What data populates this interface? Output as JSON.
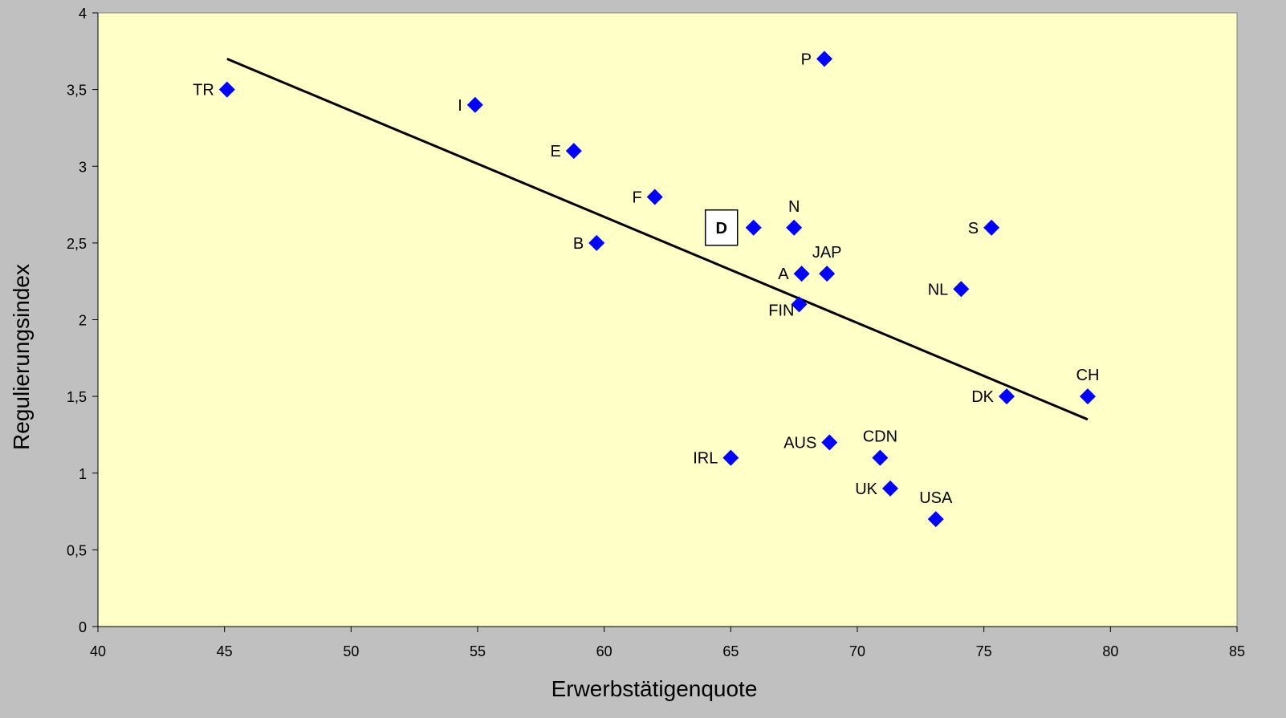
{
  "chart_data": {
    "type": "scatter",
    "title": "",
    "xlabel": "Erwerbstätigenquote",
    "ylabel": "Regulierungsindex",
    "xlim": [
      40,
      85
    ],
    "ylim": [
      0,
      4
    ],
    "xticks": [
      40,
      45,
      50,
      55,
      60,
      65,
      70,
      75,
      80,
      85
    ],
    "yticks": [
      0,
      0.5,
      1,
      1.5,
      2,
      2.5,
      3,
      3.5,
      4
    ],
    "xtick_labels": [
      "40",
      "45",
      "50",
      "55",
      "60",
      "65",
      "70",
      "75",
      "80",
      "85"
    ],
    "ytick_labels": [
      "0",
      "0,5",
      "1",
      "1,5",
      "2",
      "2,5",
      "3",
      "3,5",
      "4"
    ],
    "grid": false,
    "legend": "none",
    "colors": {
      "plot_bg": "#ffffc8",
      "page_bg": "#c0c0c0",
      "marker": "#0000ff",
      "trend": "#000000"
    },
    "points": [
      {
        "label": "TR",
        "x": 45.1,
        "y": 3.5,
        "label_pos": "left"
      },
      {
        "label": "I",
        "x": 54.9,
        "y": 3.4,
        "label_pos": "left"
      },
      {
        "label": "E",
        "x": 58.8,
        "y": 3.1,
        "label_pos": "left"
      },
      {
        "label": "B",
        "x": 59.7,
        "y": 2.5,
        "label_pos": "left"
      },
      {
        "label": "F",
        "x": 62.0,
        "y": 2.8,
        "label_pos": "left"
      },
      {
        "label": "D",
        "x": 65.9,
        "y": 2.6,
        "label_pos": "boxed-left"
      },
      {
        "label": "N",
        "x": 67.5,
        "y": 2.6,
        "label_pos": "above"
      },
      {
        "label": "A",
        "x": 67.8,
        "y": 2.3,
        "label_pos": "left"
      },
      {
        "label": "JAP",
        "x": 68.8,
        "y": 2.3,
        "label_pos": "above"
      },
      {
        "label": "FIN",
        "x": 67.7,
        "y": 2.1,
        "label_pos": "below-left"
      },
      {
        "label": "P",
        "x": 68.7,
        "y": 3.7,
        "label_pos": "left"
      },
      {
        "label": "AUS",
        "x": 68.9,
        "y": 1.2,
        "label_pos": "left"
      },
      {
        "label": "IRL",
        "x": 65.0,
        "y": 1.1,
        "label_pos": "left"
      },
      {
        "label": "CDN",
        "x": 70.9,
        "y": 1.1,
        "label_pos": "above"
      },
      {
        "label": "UK",
        "x": 71.3,
        "y": 0.9,
        "label_pos": "left"
      },
      {
        "label": "USA",
        "x": 73.1,
        "y": 0.7,
        "label_pos": "above"
      },
      {
        "label": "NL",
        "x": 74.1,
        "y": 2.2,
        "label_pos": "left"
      },
      {
        "label": "S",
        "x": 75.3,
        "y": 2.6,
        "label_pos": "left"
      },
      {
        "label": "DK",
        "x": 75.9,
        "y": 1.5,
        "label_pos": "left"
      },
      {
        "label": "CH",
        "x": 79.1,
        "y": 1.5,
        "label_pos": "above"
      }
    ],
    "trendline": [
      {
        "x": 45.1,
        "y": 3.7
      },
      {
        "x": 79.1,
        "y": 1.35
      }
    ]
  }
}
